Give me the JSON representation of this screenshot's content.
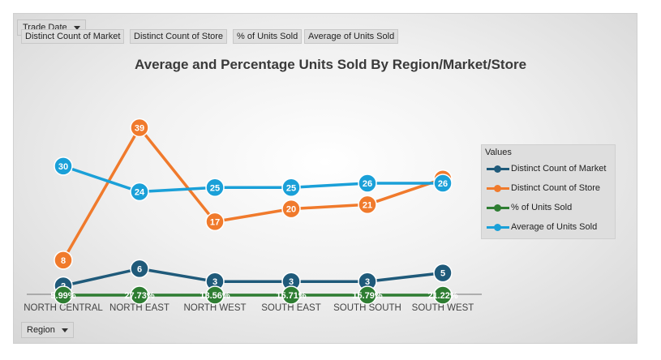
{
  "filters": {
    "trade_date": "Trade Date",
    "region": "Region"
  },
  "fields": [
    "Distinct Count of Market",
    "Distinct Count of Store",
    "% of Units Sold",
    "Average of Units Sold"
  ],
  "legend_title": "Values",
  "chart_data": {
    "type": "line",
    "title": "Average and Percentage Units Sold By Region/Market/Store",
    "categories": [
      "NORTH CENTRAL",
      "NORTH EAST",
      "NORTH WEST",
      "SOUTH EAST",
      "SOUTH SOUTH",
      "SOUTH WEST"
    ],
    "series": [
      {
        "name": "Distinct Count of Market",
        "color": "#1f5a7a",
        "values": [
          2,
          6,
          3,
          3,
          3,
          5
        ],
        "labels": [
          "2",
          "6",
          "3",
          "3",
          "3",
          "5"
        ]
      },
      {
        "name": "Distinct Count of Store",
        "color": "#f07a2c",
        "values": [
          8,
          39,
          17,
          20,
          21,
          27
        ],
        "labels": [
          "8",
          "39",
          "17",
          "20",
          "21",
          "27"
        ]
      },
      {
        "name": "% of Units Sold",
        "color": "#2e7d32",
        "values": [
          0.0599,
          0.2773,
          0.1356,
          0.1571,
          0.1579,
          0.2122
        ],
        "labels": [
          "5.99%",
          "27.73%",
          "13.56%",
          "15.71%",
          "15.79%",
          "21.22%"
        ]
      },
      {
        "name": "Average of Units Sold",
        "color": "#1aa0d8",
        "values": [
          30,
          24,
          25,
          25,
          26,
          26
        ],
        "labels": [
          "30",
          "24",
          "25",
          "25",
          "26",
          "26"
        ]
      }
    ],
    "legend_position": "right",
    "grid": false
  }
}
